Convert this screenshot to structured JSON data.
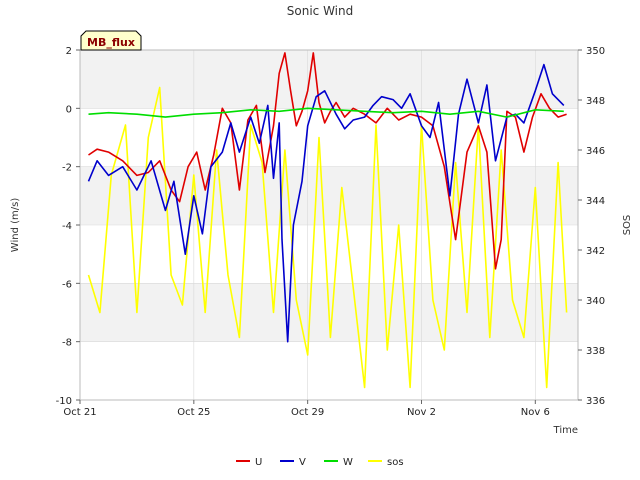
{
  "chart_data": {
    "type": "line",
    "title": "Sonic Wind",
    "xlabel": "Time",
    "ylabel": "Wind (m/s)",
    "y2label": "SOS",
    "badge": "MB_flux",
    "colors": {
      "badge_bg": "#ffffcc",
      "badge_text": "#8b0000",
      "band": "#f2f2f2",
      "grid": "#d9d9d9"
    },
    "x_range": [
      0,
      17.5
    ],
    "ylim": [
      -10,
      2
    ],
    "y2lim": [
      336,
      350
    ],
    "x_ticks": [
      {
        "value": 0,
        "label": "Oct 21"
      },
      {
        "value": 4,
        "label": "Oct 25"
      },
      {
        "value": 8,
        "label": "Oct 29"
      },
      {
        "value": 12,
        "label": "Nov 2"
      },
      {
        "value": 16,
        "label": "Nov 6"
      }
    ],
    "y_ticks": [
      2,
      0,
      -2,
      -4,
      -6,
      -8,
      -10
    ],
    "y2_ticks": [
      350,
      348,
      346,
      344,
      342,
      340,
      338,
      336
    ],
    "legend": [
      {
        "name": "U",
        "color": "#e00000"
      },
      {
        "name": "V",
        "color": "#0000cc"
      },
      {
        "name": "W",
        "color": "#00dd00"
      },
      {
        "name": "sos",
        "color": "#ffff00"
      }
    ],
    "series": [
      {
        "name": "U",
        "axis": "left",
        "color": "#e00000",
        "x": [
          0.3,
          0.6,
          1.0,
          1.5,
          2.0,
          2.4,
          2.8,
          3.2,
          3.5,
          3.8,
          4.1,
          4.4,
          4.7,
          5.0,
          5.3,
          5.6,
          5.9,
          6.2,
          6.5,
          6.8,
          7.0,
          7.2,
          7.4,
          7.6,
          7.8,
          8.0,
          8.2,
          8.4,
          8.6,
          8.8,
          9.0,
          9.3,
          9.6,
          10.0,
          10.4,
          10.8,
          11.2,
          11.6,
          12.0,
          12.4,
          12.8,
          13.2,
          13.6,
          14.0,
          14.3,
          14.6,
          14.8,
          15.0,
          15.3,
          15.6,
          15.9,
          16.2,
          16.5,
          16.8,
          17.1
        ],
        "y": [
          -1.6,
          -1.4,
          -1.5,
          -1.8,
          -2.3,
          -2.2,
          -1.8,
          -2.8,
          -3.2,
          -2.0,
          -1.5,
          -2.8,
          -1.6,
          0.0,
          -0.5,
          -2.8,
          -0.4,
          0.1,
          -2.2,
          -0.6,
          1.2,
          1.9,
          0.6,
          -0.6,
          -0.1,
          0.6,
          1.9,
          0.2,
          -0.5,
          -0.1,
          0.2,
          -0.3,
          0.0,
          -0.2,
          -0.5,
          0.0,
          -0.4,
          -0.2,
          -0.3,
          -0.6,
          -2.0,
          -4.5,
          -1.5,
          -0.6,
          -1.5,
          -5.5,
          -4.5,
          -0.1,
          -0.3,
          -1.5,
          -0.3,
          0.5,
          0.0,
          -0.3,
          -0.2
        ]
      },
      {
        "name": "V",
        "axis": "left",
        "color": "#0000cc",
        "x": [
          0.3,
          0.6,
          1.0,
          1.5,
          2.0,
          2.5,
          3.0,
          3.3,
          3.7,
          4.0,
          4.3,
          4.6,
          5.0,
          5.3,
          5.6,
          6.0,
          6.3,
          6.6,
          6.8,
          7.0,
          7.1,
          7.3,
          7.5,
          7.8,
          8.0,
          8.3,
          8.6,
          9.0,
          9.3,
          9.6,
          10.0,
          10.3,
          10.6,
          11.0,
          11.3,
          11.6,
          12.0,
          12.3,
          12.6,
          13.0,
          13.3,
          13.6,
          14.0,
          14.3,
          14.6,
          15.0,
          15.3,
          15.6,
          16.0,
          16.3,
          16.6,
          17.0
        ],
        "y": [
          -2.5,
          -1.8,
          -2.3,
          -2.0,
          -2.8,
          -1.8,
          -3.5,
          -2.5,
          -5.0,
          -3.0,
          -4.3,
          -2.0,
          -1.5,
          -0.5,
          -1.5,
          -0.3,
          -1.2,
          0.1,
          -2.4,
          -0.5,
          -4.5,
          -8.0,
          -4.0,
          -2.5,
          -0.6,
          0.4,
          0.6,
          -0.2,
          -0.7,
          -0.4,
          -0.3,
          0.1,
          0.4,
          0.3,
          0.0,
          0.5,
          -0.6,
          -1.0,
          0.2,
          -3.0,
          -0.2,
          1.0,
          -0.5,
          0.8,
          -1.8,
          -0.3,
          -0.2,
          -0.5,
          0.6,
          1.5,
          0.5,
          0.1
        ]
      },
      {
        "name": "W",
        "axis": "left",
        "color": "#00dd00",
        "x": [
          0.3,
          1.0,
          2.0,
          3.0,
          4.0,
          5.0,
          6.0,
          7.0,
          8.0,
          9.0,
          10.0,
          11.0,
          12.0,
          13.0,
          14.0,
          15.0,
          16.0,
          17.0
        ],
        "y": [
          -0.2,
          -0.15,
          -0.2,
          -0.3,
          -0.2,
          -0.15,
          -0.05,
          -0.1,
          0.0,
          -0.05,
          -0.1,
          -0.15,
          -0.1,
          -0.2,
          -0.1,
          -0.3,
          -0.05,
          -0.1
        ]
      },
      {
        "name": "sos",
        "axis": "right",
        "color": "#ffff00",
        "x": [
          0.3,
          0.7,
          1.1,
          1.6,
          2.0,
          2.4,
          2.8,
          3.2,
          3.6,
          4.0,
          4.4,
          4.8,
          5.2,
          5.6,
          6.0,
          6.4,
          6.8,
          7.2,
          7.6,
          8.0,
          8.4,
          8.8,
          9.2,
          9.6,
          10.0,
          10.4,
          10.8,
          11.2,
          11.6,
          12.0,
          12.4,
          12.8,
          13.2,
          13.6,
          14.0,
          14.4,
          14.8,
          15.2,
          15.6,
          16.0,
          16.4,
          16.8,
          17.1
        ],
        "y": [
          341,
          339.5,
          345,
          347,
          339.5,
          346.5,
          348.5,
          341,
          339.8,
          345,
          339.5,
          346,
          341,
          338.5,
          347,
          345.5,
          339.5,
          346,
          340,
          337.8,
          346.5,
          338.5,
          344.5,
          340.5,
          336.5,
          347,
          338,
          343,
          336.5,
          347,
          340,
          338,
          345.5,
          339.5,
          347,
          338.5,
          346,
          340,
          338.5,
          344.5,
          336.5,
          345.5,
          339.5
        ]
      }
    ]
  }
}
